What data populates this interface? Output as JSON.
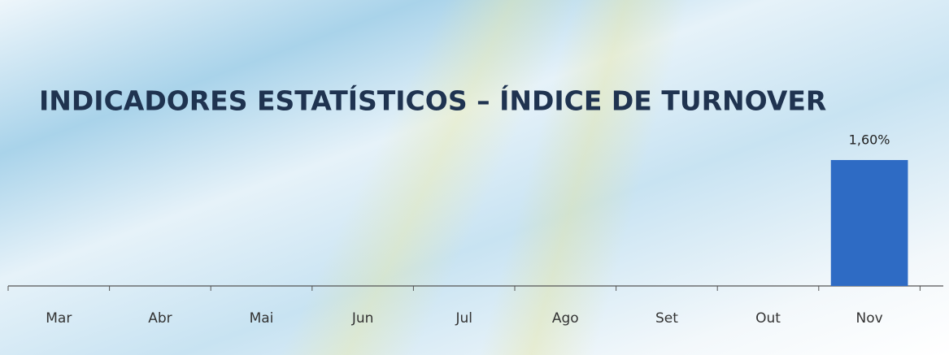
{
  "chart_data": {
    "type": "bar",
    "title": "INDICADORES ESTATÍSTICOS – ÍNDICE DE TURNOVER",
    "categories": [
      "Mar",
      "Abr",
      "Mai",
      "Jun",
      "Jul",
      "Ago",
      "Set",
      "Out",
      "Nov"
    ],
    "values": [
      null,
      null,
      null,
      null,
      null,
      null,
      null,
      null,
      1.6
    ],
    "value_labels": [
      null,
      null,
      null,
      null,
      null,
      null,
      null,
      null,
      "1,60%"
    ],
    "color": "#2e6bc4"
  }
}
